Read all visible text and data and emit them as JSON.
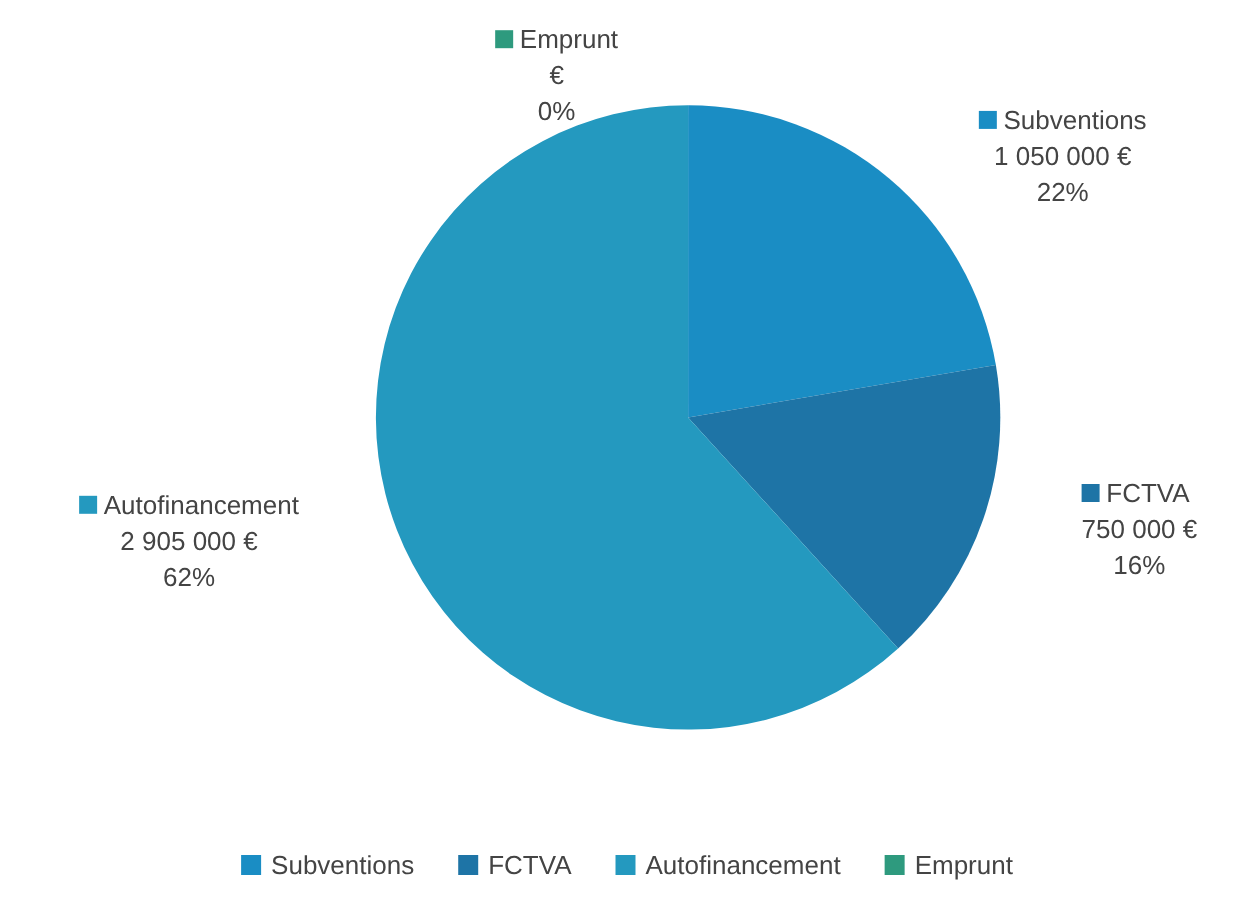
{
  "chart_data": {
    "type": "pie",
    "categories": [
      "Subventions",
      "FCTVA",
      "Autofinancement",
      "Emprunt"
    ],
    "values": [
      1050000,
      750000,
      2905000,
      0
    ],
    "colors": [
      "#1a8dc4",
      "#1e74a6",
      "#2499bf",
      "#2e9a7e"
    ],
    "value_labels": [
      "1 050 000 €\n22%",
      "750 000 €\n16%",
      "2 905 000 €\n62%",
      "€\n0%"
    ],
    "legend": "bottom"
  }
}
